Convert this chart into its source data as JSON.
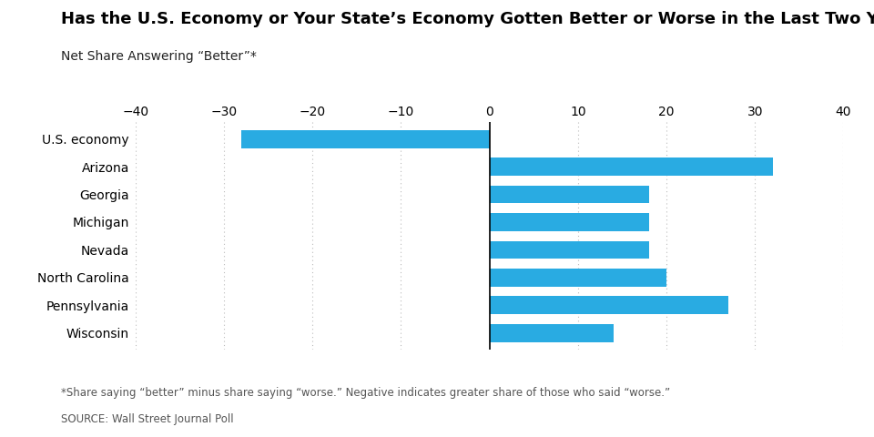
{
  "title": "Has the U.S. Economy or Your State’s Economy Gotten Better or Worse in the Last Two Years?",
  "subtitle": "Net Share Answering “Better”*",
  "categories": [
    "U.S. economy",
    "Arizona",
    "Georgia",
    "Michigan",
    "Nevada",
    "North Carolina",
    "Pennsylvania",
    "Wisconsin"
  ],
  "values": [
    -28,
    32,
    18,
    18,
    18,
    20,
    27,
    14
  ],
  "bar_color": "#29ABE2",
  "xlim": [
    -40,
    40
  ],
  "xticks": [
    -40,
    -30,
    -20,
    -10,
    0,
    10,
    20,
    30,
    40
  ],
  "footnote": "*Share saying “better” minus share saying “worse.” Negative indicates greater share of those who said “worse.”",
  "source": "SOURCE: Wall Street Journal Poll",
  "title_fontsize": 13,
  "subtitle_fontsize": 10,
  "label_fontsize": 10,
  "tick_fontsize": 10,
  "footnote_fontsize": 8.5,
  "source_fontsize": 8.5,
  "background_color": "#ffffff",
  "grid_color": "#bbbbbb",
  "zeroline_color": "#000000"
}
